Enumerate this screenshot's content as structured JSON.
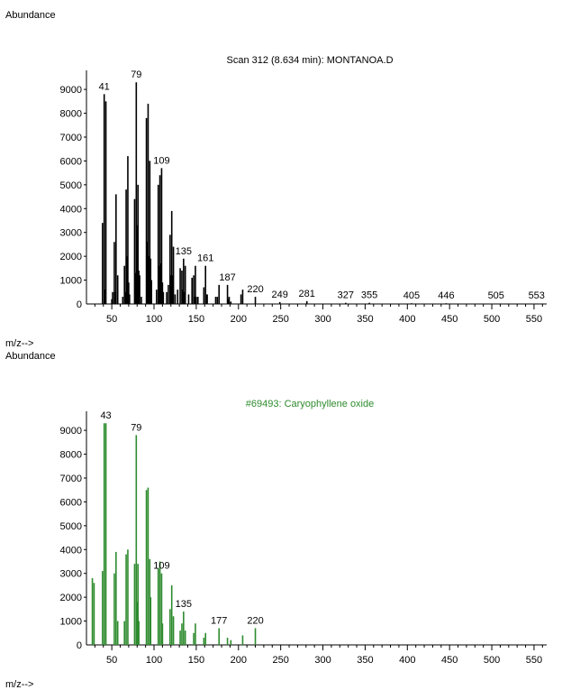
{
  "chart_data": [
    {
      "type": "bar",
      "title": "Scan 312 (8.634 min): MONTANOA.D",
      "ylabel": "Abundance",
      "xlabel": "m/z-->",
      "color": "#000000",
      "xlim": [
        20,
        565
      ],
      "ylim": [
        0,
        9800
      ],
      "xticks": [
        50,
        100,
        150,
        200,
        250,
        300,
        350,
        400,
        450,
        500,
        550
      ],
      "yticks": [
        1000,
        2000,
        3000,
        4000,
        5000,
        6000,
        7000,
        8000,
        9000
      ],
      "peaks": [
        [
          39,
          3400
        ],
        [
          41,
          8800
        ],
        [
          42,
          600
        ],
        [
          43,
          8500
        ],
        [
          50,
          200
        ],
        [
          51,
          500
        ],
        [
          53,
          2600
        ],
        [
          54,
          500
        ],
        [
          55,
          4600
        ],
        [
          57,
          1200
        ],
        [
          63,
          300
        ],
        [
          65,
          1600
        ],
        [
          66,
          500
        ],
        [
          67,
          4800
        ],
        [
          68,
          2000
        ],
        [
          69,
          6200
        ],
        [
          70,
          900
        ],
        [
          71,
          400
        ],
        [
          77,
          4400
        ],
        [
          78,
          1300
        ],
        [
          79,
          9300
        ],
        [
          80,
          3300
        ],
        [
          81,
          5000
        ],
        [
          82,
          1400
        ],
        [
          83,
          1200
        ],
        [
          85,
          300
        ],
        [
          91,
          7800
        ],
        [
          92,
          2600
        ],
        [
          93,
          8400
        ],
        [
          94,
          2000
        ],
        [
          95,
          6000
        ],
        [
          96,
          1900
        ],
        [
          97,
          1000
        ],
        [
          103,
          600
        ],
        [
          105,
          5000
        ],
        [
          106,
          1600
        ],
        [
          107,
          5400
        ],
        [
          108,
          1700
        ],
        [
          109,
          5700
        ],
        [
          110,
          900
        ],
        [
          111,
          500
        ],
        [
          115,
          500
        ],
        [
          117,
          800
        ],
        [
          119,
          2900
        ],
        [
          120,
          1200
        ],
        [
          121,
          3900
        ],
        [
          122,
          1200
        ],
        [
          123,
          2400
        ],
        [
          125,
          400
        ],
        [
          128,
          600
        ],
        [
          131,
          1500
        ],
        [
          133,
          1400
        ],
        [
          134,
          600
        ],
        [
          135,
          1900
        ],
        [
          136,
          500
        ],
        [
          137,
          1600
        ],
        [
          141,
          400
        ],
        [
          145,
          1100
        ],
        [
          147,
          1200
        ],
        [
          148,
          300
        ],
        [
          149,
          1600
        ],
        [
          150,
          300
        ],
        [
          152,
          300
        ],
        [
          159,
          700
        ],
        [
          161,
          1600
        ],
        [
          162,
          400
        ],
        [
          163,
          400
        ],
        [
          173,
          300
        ],
        [
          175,
          300
        ],
        [
          177,
          800
        ],
        [
          187,
          800
        ],
        [
          188,
          200
        ],
        [
          189,
          300
        ],
        [
          191,
          100
        ],
        [
          203,
          400
        ],
        [
          205,
          600
        ],
        [
          220,
          300
        ],
        [
          249,
          80
        ],
        [
          281,
          120
        ],
        [
          327,
          50
        ],
        [
          355,
          50
        ],
        [
          405,
          30
        ],
        [
          446,
          30
        ],
        [
          505,
          20
        ],
        [
          553,
          20
        ]
      ],
      "peak_labels": [
        {
          "mz": 41,
          "text": "41"
        },
        {
          "mz": 79,
          "text": "79"
        },
        {
          "mz": 109,
          "text": "109"
        },
        {
          "mz": 135,
          "text": "135"
        },
        {
          "mz": 161,
          "text": "161"
        },
        {
          "mz": 187,
          "text": "187"
        },
        {
          "mz": 220,
          "text": "220"
        },
        {
          "mz": 249,
          "text": "249"
        },
        {
          "mz": 281,
          "text": "281"
        },
        {
          "mz": 327,
          "text": "327"
        },
        {
          "mz": 355,
          "text": "355"
        },
        {
          "mz": 405,
          "text": "405"
        },
        {
          "mz": 446,
          "text": "446"
        },
        {
          "mz": 505,
          "text": "505"
        },
        {
          "mz": 553,
          "text": "553"
        }
      ]
    },
    {
      "type": "bar",
      "title": "#69493: Caryophyllene oxide",
      "ylabel": "Abundance",
      "xlabel": "m/z-->",
      "color": "#2e8b2e",
      "xlim": [
        20,
        565
      ],
      "ylim": [
        0,
        9800
      ],
      "xticks": [
        50,
        100,
        150,
        200,
        250,
        300,
        350,
        400,
        450,
        500,
        550
      ],
      "yticks": [
        1000,
        2000,
        3000,
        4000,
        5000,
        6000,
        7000,
        8000,
        9000
      ],
      "peaks": [
        [
          27,
          2800
        ],
        [
          29,
          2600
        ],
        [
          39,
          3100
        ],
        [
          41,
          9300
        ],
        [
          43,
          9300
        ],
        [
          53,
          3000
        ],
        [
          55,
          3900
        ],
        [
          57,
          1000
        ],
        [
          65,
          1000
        ],
        [
          67,
          3800
        ],
        [
          69,
          4000
        ],
        [
          77,
          3400
        ],
        [
          79,
          8800
        ],
        [
          80,
          1800
        ],
        [
          81,
          3400
        ],
        [
          82,
          1000
        ],
        [
          91,
          6500
        ],
        [
          93,
          6600
        ],
        [
          95,
          3600
        ],
        [
          96,
          2000
        ],
        [
          105,
          3200
        ],
        [
          107,
          3500
        ],
        [
          109,
          3000
        ],
        [
          110,
          900
        ],
        [
          119,
          1500
        ],
        [
          121,
          2500
        ],
        [
          123,
          1200
        ],
        [
          131,
          600
        ],
        [
          133,
          900
        ],
        [
          135,
          1400
        ],
        [
          137,
          600
        ],
        [
          147,
          500
        ],
        [
          149,
          900
        ],
        [
          159,
          300
        ],
        [
          161,
          500
        ],
        [
          177,
          700
        ],
        [
          187,
          300
        ],
        [
          191,
          200
        ],
        [
          205,
          400
        ],
        [
          220,
          700
        ]
      ],
      "peak_labels": [
        {
          "mz": 43,
          "text": "43"
        },
        {
          "mz": 79,
          "text": "79"
        },
        {
          "mz": 109,
          "text": "109"
        },
        {
          "mz": 135,
          "text": "135"
        },
        {
          "mz": 177,
          "text": "177"
        },
        {
          "mz": 220,
          "text": "220"
        }
      ]
    }
  ]
}
